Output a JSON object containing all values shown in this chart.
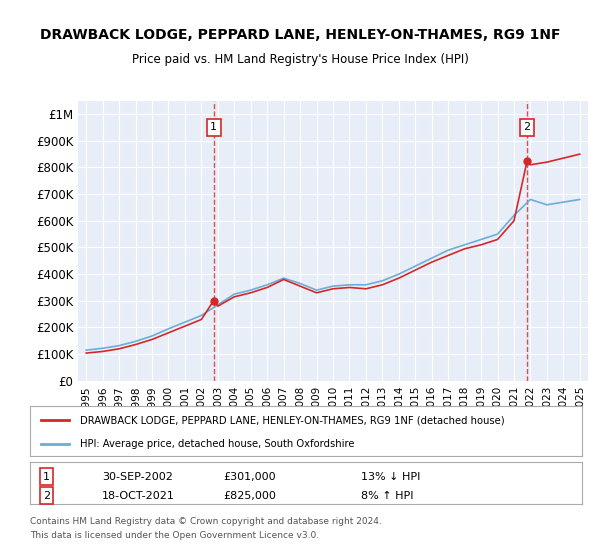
{
  "title": "DRAWBACK LODGE, PEPPARD LANE, HENLEY-ON-THAMES, RG9 1NF",
  "subtitle": "Price paid vs. HM Land Registry's House Price Index (HPI)",
  "ylim": [
    0,
    1050000
  ],
  "yticks": [
    0,
    100000,
    200000,
    300000,
    400000,
    500000,
    600000,
    700000,
    800000,
    900000,
    1000000
  ],
  "ytick_labels": [
    "£0",
    "£100K",
    "£200K",
    "£300K",
    "£400K",
    "£500K",
    "£600K",
    "£700K",
    "£800K",
    "£900K",
    "£1M"
  ],
  "background_color": "#e8eef8",
  "plot_bg_color": "#e8eef8",
  "grid_color": "#ffffff",
  "hpi_color": "#6baed6",
  "price_color": "#d62728",
  "sale1_date": "30-SEP-2002",
  "sale1_price": 301000,
  "sale1_label": "1",
  "sale1_hpi_pct": "13% ↓ HPI",
  "sale2_date": "18-OCT-2021",
  "sale2_price": 825000,
  "sale2_label": "2",
  "sale2_hpi_pct": "8% ↑ HPI",
  "legend_line1": "DRAWBACK LODGE, PEPPARD LANE, HENLEY-ON-THAMES, RG9 1NF (detached house)",
  "legend_line2": "HPI: Average price, detached house, South Oxfordshire",
  "footer1": "Contains HM Land Registry data © Crown copyright and database right 2024.",
  "footer2": "This data is licensed under the Open Government Licence v3.0.",
  "xtick_years": [
    "1995",
    "1996",
    "1997",
    "1998",
    "1999",
    "2000",
    "2001",
    "2002",
    "2003",
    "2004",
    "2005",
    "2006",
    "2007",
    "2008",
    "2009",
    "2010",
    "2011",
    "2012",
    "2013",
    "2014",
    "2015",
    "2016",
    "2017",
    "2018",
    "2019",
    "2020",
    "2021",
    "2022",
    "2023",
    "2024",
    "2025"
  ],
  "hpi_x": [
    1995,
    1996,
    1997,
    1998,
    1999,
    2000,
    2001,
    2002,
    2003,
    2004,
    2005,
    2006,
    2007,
    2008,
    2009,
    2010,
    2011,
    2012,
    2013,
    2014,
    2015,
    2016,
    2017,
    2018,
    2019,
    2020,
    2021,
    2022,
    2023,
    2024,
    2025
  ],
  "hpi_y": [
    115000,
    122000,
    132000,
    148000,
    168000,
    195000,
    220000,
    245000,
    285000,
    325000,
    340000,
    360000,
    385000,
    365000,
    340000,
    355000,
    360000,
    360000,
    375000,
    400000,
    430000,
    460000,
    490000,
    510000,
    530000,
    550000,
    620000,
    680000,
    660000,
    670000,
    680000
  ],
  "price_x": [
    1995,
    1996,
    1997,
    1998,
    1999,
    2000,
    2001,
    2002,
    2002.75,
    2003,
    2004,
    2005,
    2006,
    2007,
    2008,
    2009,
    2010,
    2011,
    2012,
    2013,
    2014,
    2015,
    2016,
    2017,
    2018,
    2019,
    2020,
    2021,
    2021.8,
    2022,
    2023,
    2024,
    2025
  ],
  "price_y": [
    104000,
    110000,
    120000,
    136000,
    155000,
    180000,
    205000,
    230000,
    301000,
    280000,
    315000,
    330000,
    350000,
    380000,
    355000,
    330000,
    345000,
    350000,
    345000,
    360000,
    385000,
    415000,
    445000,
    470000,
    495000,
    510000,
    530000,
    600000,
    825000,
    810000,
    820000,
    835000,
    850000
  ]
}
